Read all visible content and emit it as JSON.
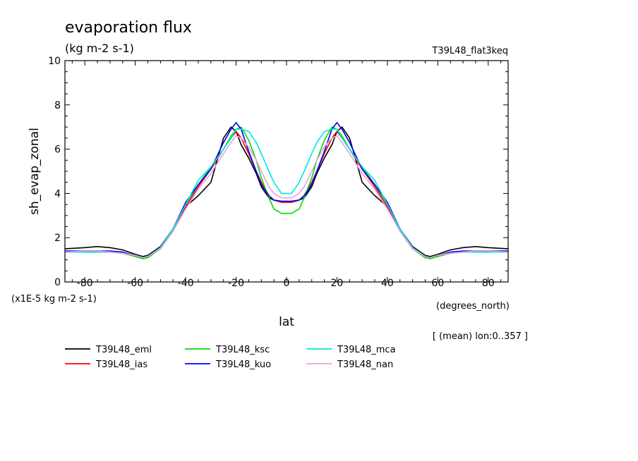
{
  "chart_data": {
    "type": "line",
    "title": "evaporation flux",
    "units": "(kg m-2 s-1)",
    "case_label": "T39L48_flat3keq",
    "xlabel": "lat",
    "xunits": "(degrees_north)",
    "ylabel": "sh_evap_zonal",
    "yscale_note": "(x1E-5 kg m-2 s-1)",
    "averaging_note": "[ (mean) lon:0..357 ]",
    "xlim": [
      -87.9,
      87.9
    ],
    "ylim": [
      0,
      10
    ],
    "xticks": [
      -80,
      -60,
      -40,
      -20,
      0,
      20,
      40,
      60,
      80
    ],
    "xtick_labels": [
      "-80",
      "-60",
      "-40",
      "-20",
      "0",
      "20",
      "40",
      "60",
      "80"
    ],
    "yticks": [
      0,
      2,
      4,
      6,
      8,
      10
    ],
    "ytick_labels": [
      "0",
      "2",
      "4",
      "6",
      "8",
      "10"
    ],
    "grid": false,
    "legend_position": "bottom",
    "x": [
      -87.9,
      -80,
      -75,
      -70,
      -65,
      -60,
      -57,
      -55,
      -50,
      -45,
      -40,
      -35,
      -30,
      -25,
      -22,
      -20,
      -18,
      -15,
      -12,
      -10,
      -7,
      -5,
      -2,
      0,
      2,
      5,
      7,
      10,
      12,
      15,
      18,
      20,
      22,
      25,
      30,
      35,
      40,
      45,
      50,
      55,
      57,
      60,
      65,
      70,
      75,
      80,
      87.9
    ],
    "series": [
      {
        "name": "T39L48_eml",
        "color": "#000000",
        "values": [
          1.5,
          1.55,
          1.6,
          1.55,
          1.45,
          1.25,
          1.15,
          1.2,
          1.6,
          2.4,
          3.4,
          3.9,
          4.5,
          6.5,
          7.0,
          6.8,
          6.2,
          5.6,
          4.9,
          4.3,
          3.8,
          3.7,
          3.6,
          3.6,
          3.6,
          3.7,
          3.8,
          4.3,
          4.9,
          5.6,
          6.2,
          6.8,
          7.0,
          6.5,
          4.5,
          3.9,
          3.4,
          2.4,
          1.6,
          1.2,
          1.15,
          1.25,
          1.45,
          1.55,
          1.6,
          1.55,
          1.5
        ]
      },
      {
        "name": "T39L48_ias",
        "color": "#ff0000",
        "values": [
          1.35,
          1.4,
          1.4,
          1.35,
          1.3,
          1.15,
          1.05,
          1.1,
          1.5,
          2.3,
          3.4,
          4.3,
          5.1,
          6.0,
          6.5,
          6.8,
          6.5,
          5.8,
          5.0,
          4.5,
          3.9,
          3.7,
          3.6,
          3.6,
          3.6,
          3.7,
          3.9,
          4.5,
          5.0,
          5.8,
          6.5,
          6.8,
          6.5,
          6.0,
          5.1,
          4.3,
          3.4,
          2.3,
          1.5,
          1.1,
          1.05,
          1.15,
          1.3,
          1.35,
          1.4,
          1.4,
          1.35
        ]
      },
      {
        "name": "T39L48_ksc",
        "color": "#00dd00",
        "values": [
          1.35,
          1.35,
          1.35,
          1.35,
          1.3,
          1.15,
          1.05,
          1.1,
          1.5,
          2.4,
          3.5,
          4.4,
          5.2,
          6.0,
          6.6,
          6.9,
          7.0,
          6.4,
          5.5,
          4.7,
          3.8,
          3.3,
          3.1,
          3.1,
          3.1,
          3.3,
          3.8,
          4.7,
          5.5,
          6.4,
          7.0,
          6.9,
          6.6,
          6.0,
          5.2,
          4.4,
          3.5,
          2.4,
          1.5,
          1.1,
          1.05,
          1.15,
          1.3,
          1.35,
          1.35,
          1.35,
          1.35
        ]
      },
      {
        "name": "T39L48_kuo",
        "color": "#0000ff",
        "values": [
          1.4,
          1.4,
          1.4,
          1.4,
          1.35,
          1.2,
          1.1,
          1.15,
          1.55,
          2.4,
          3.6,
          4.4,
          5.1,
          6.3,
          6.9,
          7.2,
          6.9,
          5.9,
          5.0,
          4.4,
          3.9,
          3.7,
          3.65,
          3.65,
          3.65,
          3.7,
          3.9,
          4.4,
          5.0,
          5.9,
          6.9,
          7.2,
          6.9,
          6.3,
          5.1,
          4.4,
          3.6,
          2.4,
          1.55,
          1.15,
          1.1,
          1.2,
          1.35,
          1.4,
          1.4,
          1.4,
          1.4
        ]
      },
      {
        "name": "T39L48_mca",
        "color": "#00e5e5",
        "values": [
          1.35,
          1.35,
          1.35,
          1.35,
          1.3,
          1.2,
          1.1,
          1.15,
          1.55,
          2.4,
          3.5,
          4.6,
          5.2,
          6.0,
          6.5,
          6.9,
          6.9,
          6.8,
          6.3,
          5.8,
          5.0,
          4.5,
          4.0,
          4.0,
          4.0,
          4.5,
          5.0,
          5.8,
          6.3,
          6.8,
          6.9,
          6.9,
          6.5,
          6.0,
          5.2,
          4.6,
          3.5,
          2.4,
          1.55,
          1.15,
          1.1,
          1.2,
          1.3,
          1.35,
          1.35,
          1.35,
          1.35
        ]
      },
      {
        "name": "T39L48_nan",
        "color": "#e8a0e0",
        "values": [
          1.35,
          1.4,
          1.4,
          1.35,
          1.3,
          1.2,
          1.1,
          1.15,
          1.5,
          2.3,
          3.3,
          4.2,
          4.9,
          5.8,
          6.3,
          6.6,
          6.5,
          6.1,
          5.5,
          5.0,
          4.3,
          4.0,
          3.8,
          3.8,
          3.8,
          4.0,
          4.3,
          5.0,
          5.5,
          6.1,
          6.5,
          6.6,
          6.3,
          5.8,
          4.9,
          4.2,
          3.3,
          2.3,
          1.5,
          1.15,
          1.1,
          1.2,
          1.3,
          1.35,
          1.4,
          1.4,
          1.35
        ]
      }
    ]
  }
}
